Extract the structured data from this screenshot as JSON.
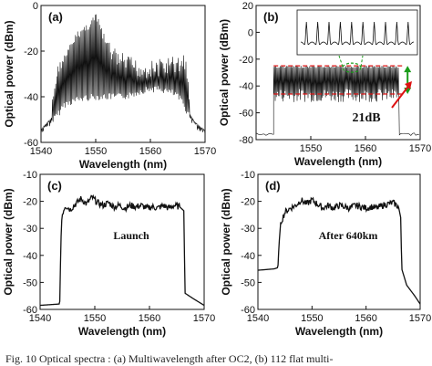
{
  "caption": "Fig. 10    Optical spectra : (a) Multiwavelength after OC2, (b) 112 flat multi-",
  "chart_data": [
    {
      "id": "a",
      "type": "line",
      "panel_label": "(a)",
      "xlabel": "Wavelength (nm)",
      "ylabel": "Optical power (dBm)",
      "xlim": [
        1540,
        1570
      ],
      "ylim": [
        -60,
        0
      ],
      "xticks": [
        1540,
        1550,
        1560,
        1570
      ],
      "yticks": [
        -60,
        -40,
        -20,
        0
      ],
      "floor": [
        [
          1540,
          -54
        ],
        [
          1541.5,
          -50
        ],
        [
          1543,
          -46
        ],
        [
          1544,
          -42
        ],
        [
          1546,
          -40
        ],
        [
          1548,
          -39
        ],
        [
          1550,
          -38.5
        ],
        [
          1552,
          -38.5
        ],
        [
          1554,
          -38.5
        ],
        [
          1556,
          -38
        ],
        [
          1558,
          -36
        ],
        [
          1560,
          -35
        ],
        [
          1562,
          -35.5
        ],
        [
          1564,
          -37
        ],
        [
          1565.5,
          -40
        ],
        [
          1566.5,
          -45
        ],
        [
          1568,
          -51
        ],
        [
          1570,
          -55
        ]
      ],
      "peaks": [
        [
          1542,
          -40
        ],
        [
          1543,
          -26
        ],
        [
          1544,
          -22
        ],
        [
          1545,
          -18
        ],
        [
          1546,
          -13
        ],
        [
          1547,
          -10
        ],
        [
          1548,
          -8
        ],
        [
          1549,
          -6
        ],
        [
          1549.8,
          -3
        ],
        [
          1550.5,
          -6
        ],
        [
          1551.5,
          -13
        ],
        [
          1552.5,
          -16
        ],
        [
          1554,
          -20
        ],
        [
          1556,
          -22
        ],
        [
          1558,
          -24
        ],
        [
          1560,
          -24
        ],
        [
          1562,
          -23
        ],
        [
          1564,
          -22
        ],
        [
          1565.5,
          -22
        ],
        [
          1566,
          -20
        ],
        [
          1566.5,
          -22
        ],
        [
          1567,
          -40
        ]
      ],
      "peak_spacing_nm": 0.2
    },
    {
      "id": "b",
      "type": "line",
      "panel_label": "(b)",
      "xlabel": "Wavelength (nm)",
      "ylabel": "Optical power (dBm)",
      "xlim": [
        1540,
        1570
      ],
      "ylim": [
        -80,
        20
      ],
      "xticks": [
        1550,
        1560,
        1570
      ],
      "yticks": [
        -80,
        -60,
        -40,
        -20,
        0,
        20
      ],
      "floor_outside": -76,
      "flat_top": -25,
      "flat_min": -46,
      "band": [
        1543.2,
        1566.2
      ],
      "annotation": "21dB",
      "inset_peaks": 10,
      "peak_spacing_nm": 0.2
    },
    {
      "id": "c",
      "type": "line",
      "panel_label": "(c)",
      "note": "Launch",
      "xlabel": "Wavelength (nm)",
      "ylabel": "Optical power (dBm)",
      "xlim": [
        1540,
        1570
      ],
      "ylim": [
        -60,
        -10
      ],
      "xticks": [
        1540,
        1550,
        1560,
        1570
      ],
      "yticks": [
        -60,
        -50,
        -40,
        -30,
        -20,
        -10
      ],
      "points": [
        [
          1540,
          -58.5
        ],
        [
          1543.5,
          -58
        ],
        [
          1543.6,
          -57
        ],
        [
          1543.8,
          -35
        ],
        [
          1544,
          -25
        ],
        [
          1544.6,
          -21.5
        ],
        [
          1545.5,
          -23
        ],
        [
          1546.5,
          -21
        ],
        [
          1547.5,
          -19
        ],
        [
          1548.5,
          -21
        ],
        [
          1549.5,
          -18.5
        ],
        [
          1550.5,
          -20.5
        ],
        [
          1551.5,
          -21.5
        ],
        [
          1552.5,
          -20.5
        ],
        [
          1553.5,
          -22
        ],
        [
          1554.5,
          -21.5
        ],
        [
          1555.5,
          -22.5
        ],
        [
          1556.5,
          -21.5
        ],
        [
          1557.5,
          -22
        ],
        [
          1558.5,
          -21.5
        ],
        [
          1559.5,
          -22.5
        ],
        [
          1560.5,
          -22
        ],
        [
          1561.5,
          -22.5
        ],
        [
          1562.5,
          -21.5
        ],
        [
          1563.5,
          -22.5
        ],
        [
          1564.5,
          -21.5
        ],
        [
          1565.5,
          -22
        ],
        [
          1566.3,
          -23.5
        ],
        [
          1566.4,
          -40
        ],
        [
          1566.5,
          -54
        ],
        [
          1568,
          -56
        ],
        [
          1570,
          -58.5
        ]
      ]
    },
    {
      "id": "d",
      "type": "line",
      "panel_label": "(d)",
      "note": "After 640km",
      "xlabel": "Wavelength (nm)",
      "ylabel": "Optical power (dBm)",
      "xlim": [
        1540,
        1570
      ],
      "ylim": [
        -60,
        -10
      ],
      "xticks": [
        1540,
        1550,
        1560,
        1570
      ],
      "yticks": [
        -60,
        -50,
        -40,
        -30,
        -20,
        -10
      ],
      "points": [
        [
          1540,
          -45.5
        ],
        [
          1543,
          -45
        ],
        [
          1543.7,
          -44.5
        ],
        [
          1543.9,
          -36
        ],
        [
          1544.2,
          -28
        ],
        [
          1545,
          -24
        ],
        [
          1546,
          -22.5
        ],
        [
          1547,
          -21.5
        ],
        [
          1548,
          -19.5
        ],
        [
          1549,
          -21
        ],
        [
          1550,
          -19.5
        ],
        [
          1551,
          -21
        ],
        [
          1552,
          -22.5
        ],
        [
          1553,
          -21.5
        ],
        [
          1554,
          -22.5
        ],
        [
          1555,
          -21.5
        ],
        [
          1556,
          -22
        ],
        [
          1557,
          -22.5
        ],
        [
          1558,
          -21.5
        ],
        [
          1559,
          -22
        ],
        [
          1560,
          -22.5
        ],
        [
          1561,
          -22
        ],
        [
          1562,
          -22.5
        ],
        [
          1563,
          -21.5
        ],
        [
          1564,
          -21
        ],
        [
          1565,
          -20.5
        ],
        [
          1566,
          -22
        ],
        [
          1566.4,
          -26
        ],
        [
          1566.6,
          -45
        ],
        [
          1567.5,
          -51
        ],
        [
          1569,
          -55
        ],
        [
          1570,
          -58
        ]
      ]
    }
  ]
}
